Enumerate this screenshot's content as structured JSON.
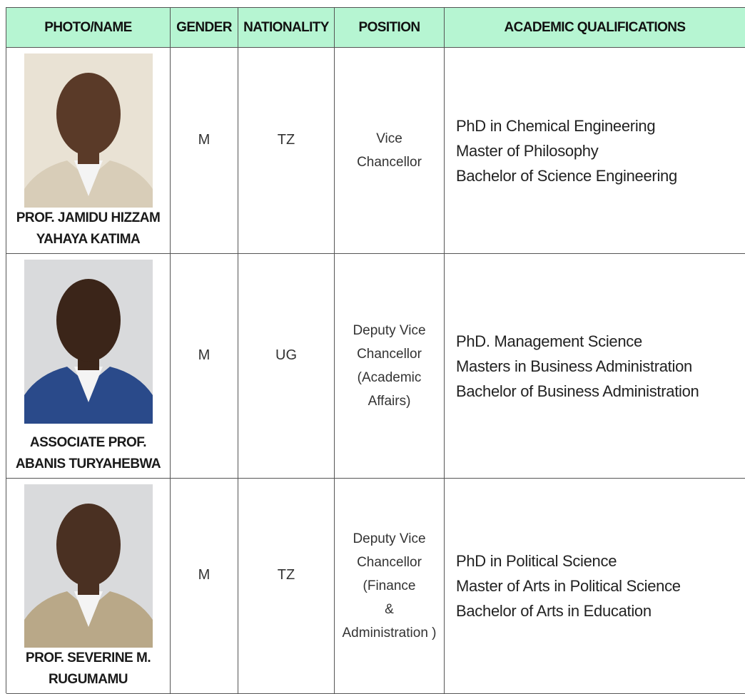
{
  "table": {
    "headers": [
      "PHOTO/NAME",
      "GENDER",
      "NATIONALITY",
      "POSITION",
      "ACADEMIC QUALIFICATIONS"
    ],
    "rows": [
      {
        "name": [
          "PROF. JAMIDU HIZZAM",
          "YAHAYA KATIMA"
        ],
        "gender": "M",
        "nationality": "TZ",
        "position": [
          "Vice",
          "Chancellor"
        ],
        "qualifications": [
          "PhD in Chemical Engineering",
          "Master of Philosophy",
          "Bachelor of Science Engineering"
        ]
      },
      {
        "name": [
          "ASSOCIATE PROF.",
          "ABANIS TURYAHEBWA"
        ],
        "gender": "M",
        "nationality": "UG",
        "position": [
          "Deputy Vice",
          "Chancellor",
          "(Academic",
          "Affairs)"
        ],
        "qualifications": [
          "PhD. Management Science",
          "Masters in Business Administration",
          "Bachelor of Business Administration"
        ]
      },
      {
        "name": [
          "PROF. SEVERINE M.",
          "RUGUMAMU"
        ],
        "gender": "M",
        "nationality": "TZ",
        "position": [
          "Deputy Vice",
          "Chancellor",
          "(Finance",
          "&",
          "Administration )"
        ],
        "qualifications": [
          "PhD in Political Science",
          "Master of Arts in Political Science",
          "Bachelor of Arts in Education"
        ]
      }
    ]
  }
}
